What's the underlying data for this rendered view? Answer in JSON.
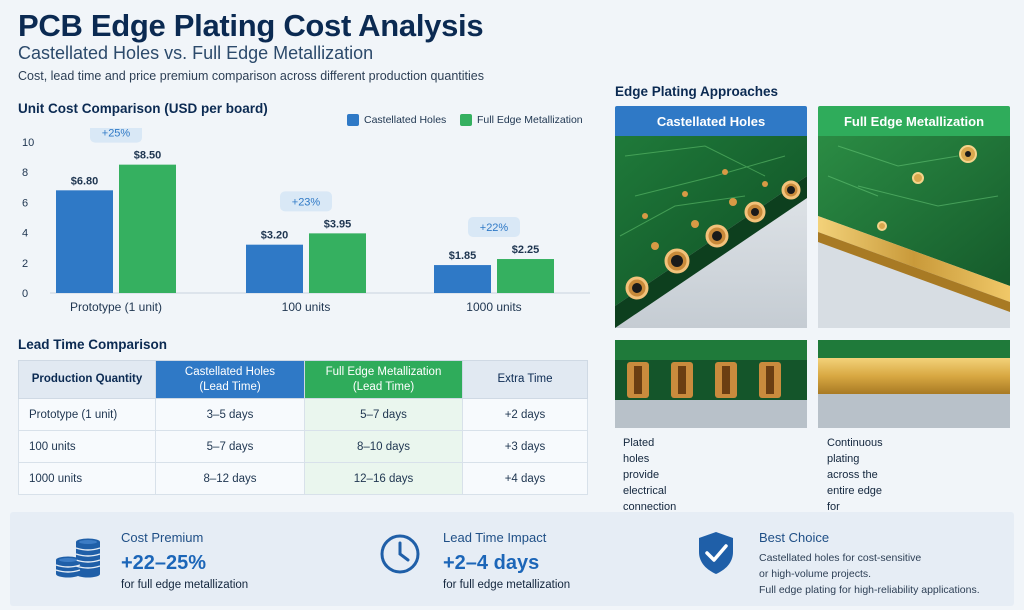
{
  "header": {
    "title": "PCB Edge Plating Cost Analysis",
    "subtitle": "Castellated Holes vs. Full Edge Metallization",
    "description": "Cost, lead time and price premium comparison across different production quantities"
  },
  "chart_data": {
    "type": "bar",
    "title": "Unit Cost Comparison (USD per board)",
    "categories": [
      "Prototype (1 unit)",
      "100 units",
      "1000 units"
    ],
    "series": [
      {
        "name": "Castellated Holes",
        "values": [
          6.8,
          3.2,
          1.85
        ],
        "labels": [
          "$6.80",
          "$3.20",
          "$1.85"
        ],
        "color": "#2f79c6"
      },
      {
        "name": "Full Edge Metallization",
        "values": [
          8.5,
          3.95,
          2.25
        ],
        "labels": [
          "$8.50",
          "$3.95",
          "$2.25"
        ],
        "color": "#35b060"
      }
    ],
    "premium_labels": [
      "+25%",
      "+23%",
      "+22%"
    ],
    "ylim": [
      0,
      10
    ],
    "yticks": [
      "0",
      "2",
      "4",
      "6",
      "8",
      "10"
    ],
    "grid": false,
    "legend": "top-right"
  },
  "lead_time": {
    "title": "Lead Time Comparison",
    "headers": [
      "Production Quantity",
      "Castellated Holes\n(Lead Time)",
      "Full Edge Metallization\n(Lead Time)",
      "Extra Time"
    ],
    "rows": [
      [
        "Prototype (1 unit)",
        "3–5 days",
        "5–7 days",
        "+2 days"
      ],
      [
        "100 units",
        "5–7 days",
        "8–10 days",
        "+3 days"
      ],
      [
        "1000 units",
        "8–12 days",
        "12–16 days",
        "+4 days"
      ]
    ]
  },
  "approaches": {
    "title": "Edge Plating Approaches",
    "castellated": {
      "label": "Castellated Holes",
      "caption_1": "Plated holes provide electrical",
      "caption_2": "connection at the edge.",
      "color": "#2f79c6"
    },
    "full_edge": {
      "label": "Full Edge Metallization",
      "caption_1": "Continuous plating across the",
      "caption_2": "entire edge for maximum reliability.",
      "color": "#2fac5b"
    }
  },
  "summary": {
    "cost": {
      "label": "Cost Premium",
      "value": "+22–25%",
      "sub": "for full edge metallization",
      "icon": "coins-icon"
    },
    "lead": {
      "label": "Lead Time Impact",
      "value": "+2–4 days",
      "sub": "for full edge metallization",
      "icon": "clock-icon"
    },
    "best": {
      "label": "Best Choice",
      "line_1": "Castellated holes for cost-sensitive",
      "line_2": "or high-volume projects.",
      "line_3": "Full edge plating for high-reliability applications.",
      "icon": "shield-check-icon"
    }
  }
}
